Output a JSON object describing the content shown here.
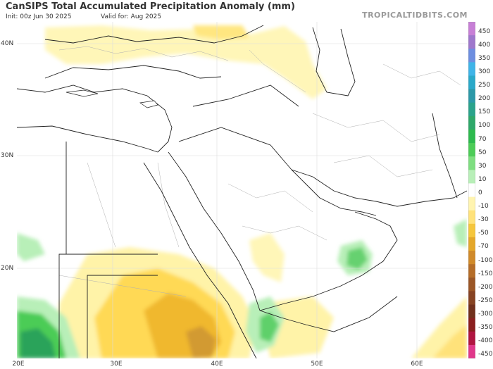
{
  "header": {
    "title": "CanSIPS Total Accumulated Precipitation Anomaly (mm)",
    "init": "Init: 00z Jun 30 2025",
    "valid": "Valid for: Aug 2025",
    "brand": "TROPICALTIDBITS.COM"
  },
  "axes": {
    "lat_labels": [
      "40N",
      "30N",
      "20N"
    ],
    "lon_labels": [
      "20E",
      "30E",
      "40E",
      "50E",
      "60E"
    ]
  },
  "colorbar": {
    "labels": [
      "450",
      "400",
      "350",
      "300",
      "250",
      "200",
      "150",
      "100",
      "70",
      "50",
      "30",
      "10",
      "0",
      "-10",
      "-30",
      "-50",
      "-70",
      "-100",
      "-150",
      "-200",
      "-250",
      "-300",
      "-350",
      "-400",
      "-450"
    ],
    "colors": [
      "#c77fd6",
      "#9e77cc",
      "#6d8ee0",
      "#3fb4e8",
      "#2aa9c9",
      "#2c99a8",
      "#2aa38b",
      "#2ea86a",
      "#2dba4e",
      "#4ccc57",
      "#7ede80",
      "#b8efb8",
      "#ffffff",
      "#fff4b0",
      "#ffe27a",
      "#f5c63c",
      "#e4a72a",
      "#d08a2a",
      "#b56d28",
      "#9b5626",
      "#864322",
      "#70301c",
      "#8a1e1e",
      "#b01540",
      "#e0378a"
    ]
  },
  "colors": {
    "border": "#222222",
    "admin": "#aaaaaa",
    "grid": "#dddddd"
  }
}
